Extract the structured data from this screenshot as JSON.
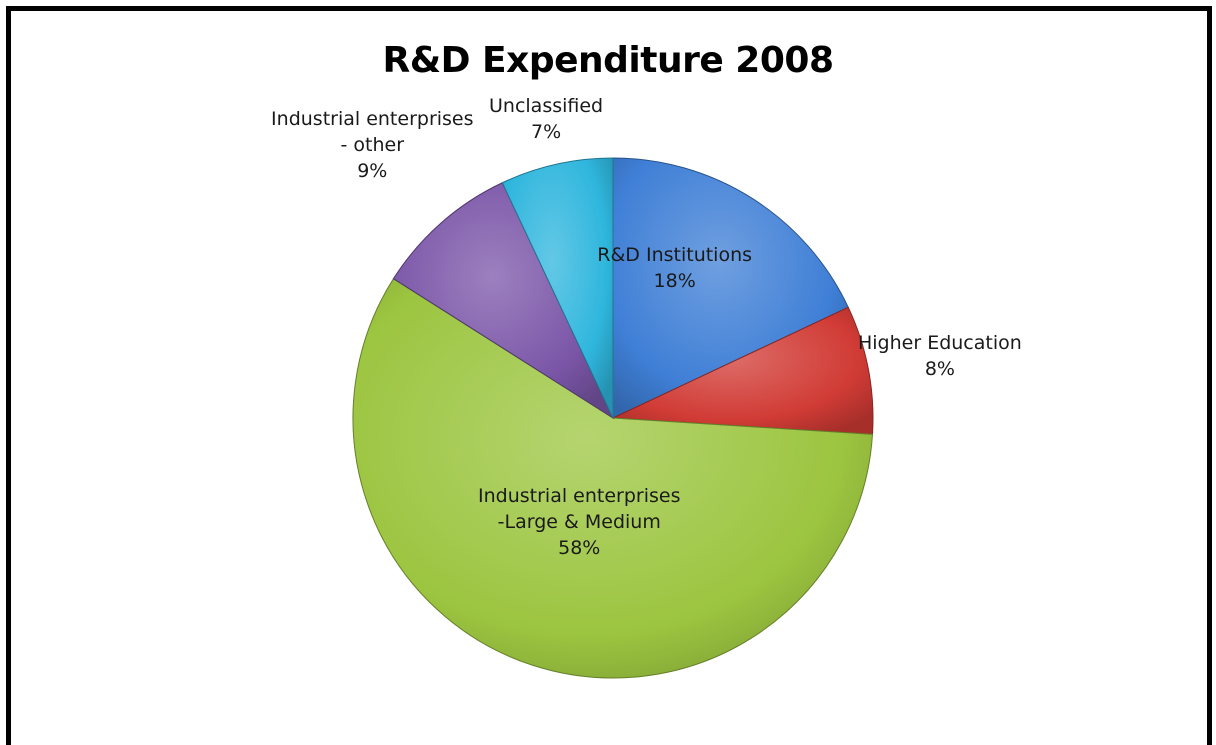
{
  "chart_data": {
    "type": "pie",
    "title": "R&D Expenditure 2008",
    "slices": [
      {
        "name": "R&D Institutions",
        "lines": [
          "R&D Institutions"
        ],
        "value": 18,
        "label": "18%",
        "color": "#3f7fd6"
      },
      {
        "name": "Higher Education",
        "lines": [
          "Higher Education"
        ],
        "value": 8,
        "label": "8%",
        "color": "#d13b35"
      },
      {
        "name": "Industrial enterprises -Large & Medium",
        "lines": [
          "Industrial enterprises",
          "-Large & Medium"
        ],
        "value": 58,
        "label": "58%",
        "color": "#9cc540"
      },
      {
        "name": "Industrial enterprises - other",
        "lines": [
          "Industrial enterprises",
          "- other"
        ],
        "value": 9,
        "label": "9%",
        "color": "#7b56a8"
      },
      {
        "name": "Unclassified",
        "lines": [
          "Unclassified"
        ],
        "value": 7,
        "label": "7%",
        "color": "#2fb6dd"
      }
    ],
    "legend": "none",
    "start_angle": "top, clockwise"
  }
}
